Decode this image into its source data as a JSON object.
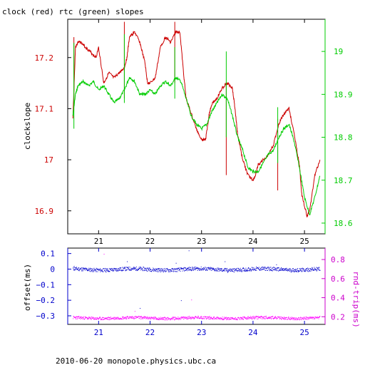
{
  "chart_data": [
    {
      "type": "line",
      "title": "clock (red) rtc (green) slopes",
      "ylabel_left": "clockslope",
      "xlim": [
        20.4,
        25.4
      ],
      "x_ticks": [
        21,
        22,
        23,
        24,
        25
      ],
      "ylim_left": [
        16.855,
        17.275
      ],
      "y_ticks_left": [
        16.9,
        17,
        17.1,
        17.2
      ],
      "ylim_right": [
        18.575,
        19.075
      ],
      "y_ticks_right": [
        18.6,
        18.7,
        18.8,
        18.9,
        19
      ],
      "colors": {
        "clock": "#cc0000",
        "rtc": "#00cc00",
        "axis": "#000000"
      },
      "series": [
        {
          "axis": "left",
          "x": [
            20.5,
            20.55,
            20.6,
            20.65,
            20.75,
            20.85,
            20.95,
            21.0,
            21.1,
            21.2,
            21.3,
            21.4,
            21.5,
            21.55,
            21.6,
            21.7,
            21.8,
            21.9,
            21.95,
            22.0,
            22.1,
            22.2,
            22.3,
            22.4,
            22.5,
            22.58,
            22.65,
            22.7,
            22.8,
            22.9,
            23.0,
            23.08,
            23.15,
            23.2,
            23.3,
            23.4,
            23.5,
            23.6,
            23.65,
            23.7,
            23.8,
            23.9,
            24.0,
            24.05,
            24.1,
            24.2,
            24.3,
            24.4,
            24.5,
            24.6,
            24.7,
            24.8,
            24.9,
            24.95,
            25.05,
            25.1,
            25.2,
            25.3
          ],
          "y": [
            17.08,
            17.22,
            17.23,
            17.23,
            17.22,
            17.21,
            17.2,
            17.22,
            17.15,
            17.17,
            17.16,
            17.17,
            17.18,
            17.2,
            17.24,
            17.25,
            17.23,
            17.19,
            17.15,
            17.15,
            17.16,
            17.22,
            17.24,
            17.23,
            17.25,
            17.25,
            17.17,
            17.12,
            17.09,
            17.06,
            17.04,
            17.04,
            17.09,
            17.11,
            17.12,
            17.14,
            17.15,
            17.14,
            17.1,
            17.05,
            17.0,
            16.97,
            16.96,
            16.97,
            16.99,
            17.0,
            17.01,
            17.03,
            17.07,
            17.09,
            17.1,
            17.05,
            16.99,
            16.93,
            16.89,
            16.9,
            16.97,
            17.0
          ]
        },
        {
          "axis": "right",
          "x": [
            20.5,
            20.55,
            20.6,
            20.7,
            20.8,
            20.9,
            21.0,
            21.1,
            21.2,
            21.3,
            21.4,
            21.5,
            21.6,
            21.7,
            21.8,
            21.9,
            22.0,
            22.1,
            22.2,
            22.3,
            22.4,
            22.5,
            22.6,
            22.7,
            22.8,
            22.9,
            23.0,
            23.1,
            23.2,
            23.3,
            23.4,
            23.5,
            23.6,
            23.7,
            23.8,
            23.9,
            24.0,
            24.1,
            24.2,
            24.3,
            24.4,
            24.5,
            24.6,
            24.7,
            24.8,
            24.9,
            25.0,
            25.1,
            25.2,
            25.3
          ],
          "y": [
            18.85,
            18.9,
            18.92,
            18.93,
            18.92,
            18.93,
            18.91,
            18.92,
            18.9,
            18.88,
            18.89,
            18.91,
            18.94,
            18.93,
            18.9,
            18.9,
            18.91,
            18.9,
            18.92,
            18.93,
            18.92,
            18.94,
            18.93,
            18.89,
            18.85,
            18.83,
            18.82,
            18.83,
            18.86,
            18.88,
            18.9,
            18.89,
            18.85,
            18.8,
            18.77,
            18.73,
            18.72,
            18.72,
            18.74,
            18.76,
            18.77,
            18.8,
            18.82,
            18.83,
            18.79,
            18.73,
            18.66,
            18.62,
            18.66,
            18.71
          ]
        }
      ],
      "spikes_left": [
        {
          "x": 20.52,
          "y1": 17.11,
          "y2": 17.24
        },
        {
          "x": 21.5,
          "y1": 17.12,
          "y2": 17.27
        },
        {
          "x": 22.48,
          "y1": 17.15,
          "y2": 17.27
        },
        {
          "x": 23.48,
          "y1": 16.97,
          "y2": 17.15
        },
        {
          "x": 24.48,
          "y1": 16.94,
          "y2": 17.08
        }
      ],
      "spikes_right": [
        {
          "x": 20.52,
          "y1": 18.82,
          "y2": 19.02
        },
        {
          "x": 21.5,
          "y1": 18.88,
          "y2": 19.04
        },
        {
          "x": 22.48,
          "y1": 18.89,
          "y2": 19.01
        },
        {
          "x": 23.48,
          "y1": 18.8,
          "y2": 19.0
        },
        {
          "x": 24.48,
          "y1": 18.74,
          "y2": 18.87
        }
      ]
    },
    {
      "type": "scatter",
      "ylabel_left": "offset(ms)",
      "ylabel_right": "rnd-trip(ms)",
      "xlim": [
        20.4,
        25.4
      ],
      "x_ticks": [
        21,
        22,
        23,
        24,
        25
      ],
      "ylim_left": [
        -0.355,
        0.135
      ],
      "y_ticks_left": [
        "0.1",
        "0",
        "−0.1",
        "−0.2",
        "−0.3"
      ],
      "y_tick_values_left": [
        0.1,
        0,
        -0.1,
        -0.2,
        -0.3
      ],
      "ylim_right": [
        0.12,
        0.92
      ],
      "y_ticks_right": [
        0.2,
        0.4,
        0.6,
        0.8
      ],
      "colors": {
        "offset": "#0000cc",
        "rndtrip": "#ff00ff",
        "axis_left": "#0000cc",
        "axis_right": "#cc00cc"
      },
      "series": [
        {
          "name": "offset",
          "axis": "left",
          "x_range": [
            20.5,
            25.3
          ],
          "baseline": 0.0,
          "spread": 0.012
        },
        {
          "name": "rnd-trip",
          "axis": "right",
          "x_range": [
            20.5,
            25.3
          ],
          "baseline": 0.19,
          "spread": 0.015
        }
      ],
      "outliers_left": [
        {
          "x": 20.52,
          "y": 0.02
        },
        {
          "x": 21.55,
          "y": 0.05
        },
        {
          "x": 22.5,
          "y": 0.04
        },
        {
          "x": 22.75,
          "y": 0.12
        },
        {
          "x": 23.45,
          "y": 0.05
        },
        {
          "x": 24.45,
          "y": 0.03
        },
        {
          "x": 21.8,
          "y": -0.25
        },
        {
          "x": 22.6,
          "y": -0.2
        },
        {
          "x": 23.5,
          "y": -0.02
        }
      ],
      "outliers_right": [
        {
          "x": 21.7,
          "y": 0.26
        },
        {
          "x": 22.8,
          "y": 0.38
        },
        {
          "x": 21.1,
          "y": 0.86
        }
      ]
    }
  ],
  "footer": "2010-06-20 monopole.physics.ubc.ca"
}
